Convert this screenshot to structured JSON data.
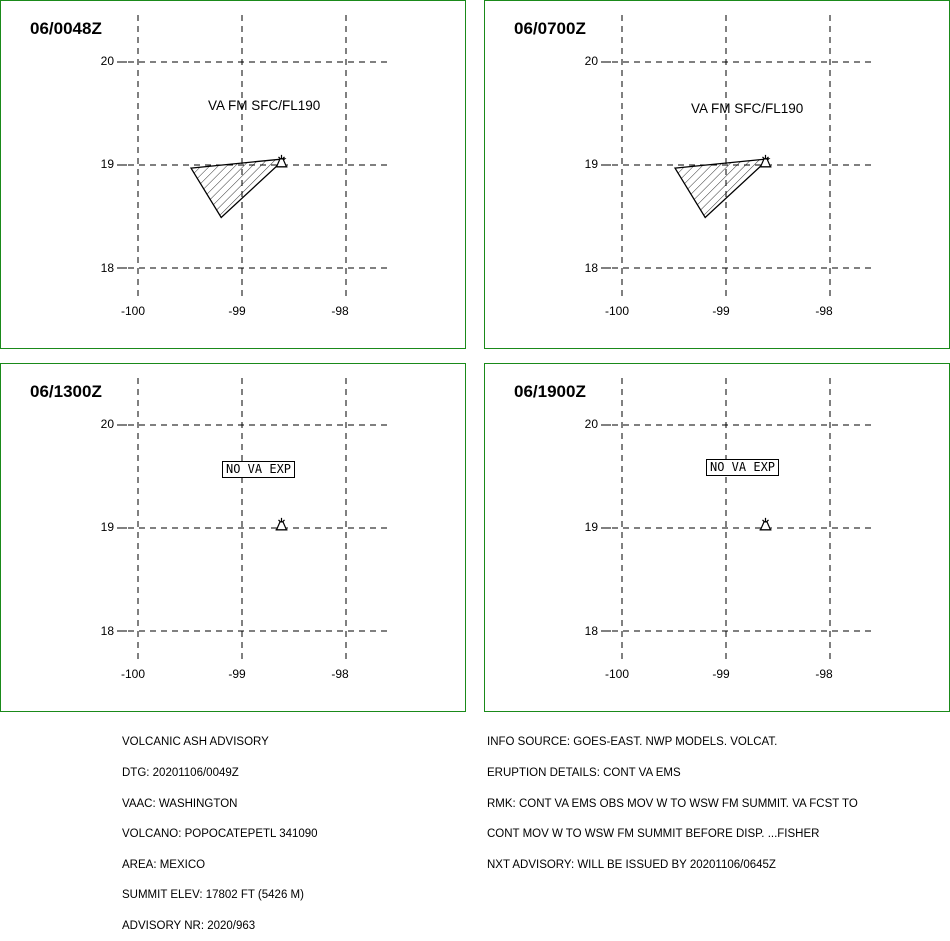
{
  "panels": [
    {
      "time": "06/0048Z",
      "label": "VA FM SFC/FL190",
      "no_va": ""
    },
    {
      "time": "06/0700Z",
      "label": "VA FM SFC/FL190",
      "no_va": ""
    },
    {
      "time": "06/1300Z",
      "label": "",
      "no_va": "NO VA EXP"
    },
    {
      "time": "06/1900Z",
      "label": "",
      "no_va": "NO VA EXP"
    }
  ],
  "axes": {
    "lat_ticks": [
      "20",
      "19",
      "18"
    ],
    "lon_ticks": [
      "-100",
      "-99",
      "-98"
    ]
  },
  "map_data": {
    "volcano": {
      "lon": -98.62,
      "lat": 19.02,
      "icon": "volcano-icon"
    },
    "ash_polygon": [
      {
        "lon": -99.49,
        "lat": 18.97
      },
      {
        "lon": -98.59,
        "lat": 19.06
      },
      {
        "lon": -99.2,
        "lat": 18.49
      }
    ],
    "ash_fill": "hatched",
    "grid": "dashed",
    "frame_color": "#1a8a1a"
  },
  "advisory_left": [
    "VOLCANIC ASH ADVISORY",
    "DTG: 20201106/0049Z",
    "VAAC: WASHINGTON",
    "VOLCANO: POPOCATEPETL 341090",
    "AREA: MEXICO",
    "SUMMIT ELEV: 17802 FT (5426 M)",
    "ADVISORY NR: 2020/963"
  ],
  "advisory_right": [
    "INFO SOURCE: GOES-EAST. NWP MODELS. VOLCAT.",
    "ERUPTION DETAILS: CONT VA EMS",
    "RMK: CONT VA EMS OBS MOV W TO WSW FM SUMMIT. VA FCST TO",
    "CONT MOV W TO WSW FM SUMMIT BEFORE DISP. ...FISHER",
    "NXT ADVISORY: WILL BE ISSUED BY 20201106/0645Z"
  ]
}
